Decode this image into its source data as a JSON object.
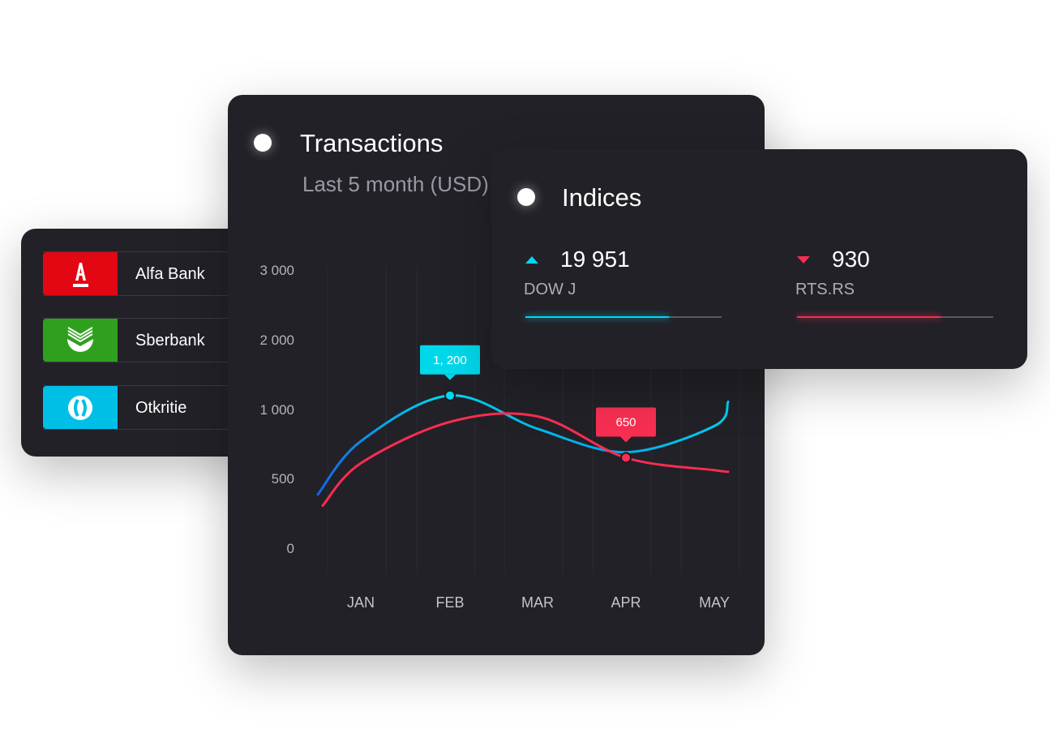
{
  "banks": [
    {
      "name": "Alfa Bank",
      "icon": "alfa-bank-logo-icon",
      "color": "#e30613"
    },
    {
      "name": "Sberbank",
      "icon": "sberbank-logo-icon",
      "color": "#2fa01e"
    },
    {
      "name": "Otkritie",
      "icon": "otkritie-logo-icon",
      "color": "#00bfe6"
    }
  ],
  "transactions": {
    "title": "Transactions",
    "subtitle": "Last 5 month (USD)"
  },
  "chart_data": {
    "type": "line",
    "categories": [
      "JAN",
      "FEB",
      "MAR",
      "APR",
      "MAY"
    ],
    "y_ticks": [
      3000,
      2000,
      1000,
      500,
      0
    ],
    "y_tick_labels": [
      "3 000",
      "2 000",
      "1 000",
      "500",
      "0"
    ],
    "grid": "vertical",
    "series": [
      {
        "color": "#00d8f0",
        "values": [
          770,
          1200,
          860,
          690,
          880
        ]
      },
      {
        "color": "#fa2d52",
        "values": [
          610,
          910,
          950,
          650,
          560
        ]
      }
    ],
    "annotations": [
      {
        "series": 0,
        "category": "FEB",
        "text": "1, 200",
        "color": "#00d8ea"
      },
      {
        "series": 1,
        "category": "APR",
        "text": "650",
        "color": "#f72f52"
      }
    ]
  },
  "indices": {
    "title": "Indices",
    "items": [
      {
        "value": "19 951",
        "name": "DOW J",
        "direction": "up",
        "color": "#00d8f0",
        "progress": 0.73
      },
      {
        "value": "930",
        "name": "RTS.RS",
        "direction": "down",
        "color": "#fa2d52",
        "progress": 0.73
      }
    ]
  }
}
